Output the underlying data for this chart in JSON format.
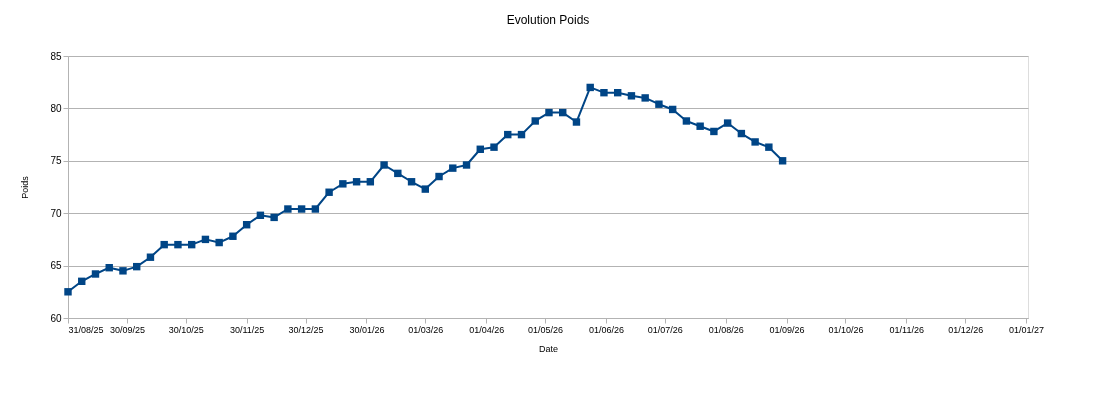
{
  "chart_data": {
    "type": "line",
    "title": "Evolution Poids",
    "xlabel": "Date",
    "ylabel": "Poids",
    "x": [
      "2025-08-31",
      "2025-09-07",
      "2025-09-14",
      "2025-09-21",
      "2025-09-28",
      "2025-10-05",
      "2025-10-12",
      "2025-10-19",
      "2025-10-26",
      "2025-11-02",
      "2025-11-09",
      "2025-11-16",
      "2025-11-23",
      "2025-11-30",
      "2025-12-07",
      "2025-12-14",
      "2025-12-21",
      "2025-12-28",
      "2026-01-04",
      "2026-01-11",
      "2026-01-18",
      "2026-01-25",
      "2026-02-01",
      "2026-02-08",
      "2026-02-15",
      "2026-02-22",
      "2026-03-01",
      "2026-03-08",
      "2026-03-15",
      "2026-03-22",
      "2026-03-29",
      "2026-04-05",
      "2026-04-12",
      "2026-04-19",
      "2026-04-26",
      "2026-05-03",
      "2026-05-10",
      "2026-05-17",
      "2026-05-24",
      "2026-05-31",
      "2026-06-07",
      "2026-06-14",
      "2026-06-21",
      "2026-06-28",
      "2026-07-05",
      "2026-07-12",
      "2026-07-19",
      "2026-07-26",
      "2026-08-02",
      "2026-08-09",
      "2026-08-16",
      "2026-08-23",
      "2026-08-30"
    ],
    "series": [
      {
        "color": "#004586",
        "values": [
          62.5,
          63.5,
          64.2,
          64.8,
          64.5,
          64.9,
          65.8,
          67.0,
          67.0,
          67.0,
          67.5,
          67.2,
          67.8,
          68.9,
          69.8,
          69.6,
          70.4,
          70.4,
          70.4,
          72.0,
          72.8,
          73.0,
          73.0,
          74.6,
          73.8,
          73.0,
          72.3,
          73.5,
          74.3,
          74.6,
          76.1,
          76.3,
          77.5,
          77.5,
          78.8,
          79.6,
          79.6,
          78.7,
          82.0,
          81.5,
          81.5,
          81.2,
          81.0,
          80.4,
          79.9,
          78.8,
          78.3,
          77.8,
          78.6,
          77.6,
          76.8,
          76.3,
          75.0
        ]
      }
    ],
    "xlim": [
      "2025-08-31",
      "2027-01-02"
    ],
    "xticks": [
      {
        "value": "2025-08-31",
        "label": "31/08/25"
      },
      {
        "value": "2025-09-30",
        "label": "30/09/25"
      },
      {
        "value": "2025-10-30",
        "label": "30/10/25"
      },
      {
        "value": "2025-11-30",
        "label": "30/11/25"
      },
      {
        "value": "2025-12-30",
        "label": "30/12/25"
      },
      {
        "value": "2026-01-30",
        "label": "30/01/26"
      },
      {
        "value": "2026-03-01",
        "label": "01/03/26"
      },
      {
        "value": "2026-04-01",
        "label": "01/04/26"
      },
      {
        "value": "2026-05-01",
        "label": "01/05/26"
      },
      {
        "value": "2026-06-01",
        "label": "01/06/26"
      },
      {
        "value": "2026-07-01",
        "label": "01/07/26"
      },
      {
        "value": "2026-08-01",
        "label": "01/08/26"
      },
      {
        "value": "2026-09-01",
        "label": "01/09/26"
      },
      {
        "value": "2026-10-01",
        "label": "01/10/26"
      },
      {
        "value": "2026-11-01",
        "label": "01/11/26"
      },
      {
        "value": "2026-12-01",
        "label": "01/12/26"
      },
      {
        "value": "2027-01-01",
        "label": "01/01/27"
      }
    ],
    "ylim": [
      60,
      85
    ],
    "yticks": [
      60,
      65,
      70,
      75,
      80,
      85
    ],
    "grid": "y",
    "marker": "square",
    "line_style": "solid"
  }
}
